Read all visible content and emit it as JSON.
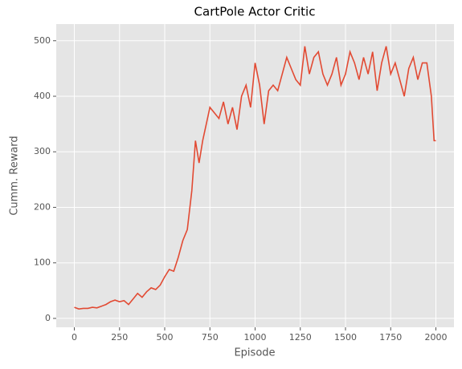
{
  "chart_data": {
    "type": "line",
    "title": "CartPole Actor Critic",
    "x_label": "Episode",
    "y_label": "Cumm. Reward",
    "x": [
      0,
      25,
      50,
      75,
      100,
      125,
      150,
      175,
      200,
      225,
      250,
      275,
      300,
      325,
      350,
      375,
      400,
      425,
      450,
      475,
      500,
      525,
      550,
      575,
      600,
      625,
      650,
      670,
      690,
      710,
      730,
      750,
      775,
      800,
      825,
      850,
      875,
      900,
      925,
      950,
      975,
      1000,
      1025,
      1050,
      1075,
      1100,
      1125,
      1150,
      1175,
      1200,
      1225,
      1250,
      1275,
      1300,
      1325,
      1350,
      1375,
      1400,
      1425,
      1450,
      1475,
      1500,
      1525,
      1550,
      1575,
      1600,
      1625,
      1650,
      1675,
      1700,
      1725,
      1750,
      1775,
      1800,
      1825,
      1850,
      1875,
      1900,
      1925,
      1950,
      1975,
      1990,
      2000
    ],
    "series": [
      {
        "name": "reward",
        "color": "#e24a33",
        "values": [
          20,
          17,
          18,
          18,
          20,
          19,
          22,
          25,
          30,
          33,
          30,
          32,
          25,
          35,
          45,
          38,
          48,
          55,
          52,
          60,
          75,
          88,
          85,
          110,
          140,
          160,
          230,
          320,
          280,
          320,
          350,
          380,
          370,
          360,
          390,
          350,
          380,
          340,
          400,
          420,
          380,
          460,
          420,
          350,
          410,
          420,
          410,
          440,
          470,
          450,
          430,
          420,
          490,
          440,
          470,
          480,
          440,
          420,
          440,
          470,
          420,
          440,
          480,
          460,
          430,
          470,
          440,
          480,
          410,
          460,
          490,
          440,
          460,
          430,
          400,
          450,
          470,
          430,
          460,
          460,
          400,
          320,
          320
        ]
      }
    ],
    "xlim": [
      -100,
      2100
    ],
    "ylim": [
      -16,
      530
    ],
    "xticks": [
      0,
      250,
      500,
      750,
      1000,
      1250,
      1500,
      1750,
      2000
    ],
    "yticks": [
      0,
      100,
      200,
      300,
      400,
      500
    ],
    "grid": true
  }
}
